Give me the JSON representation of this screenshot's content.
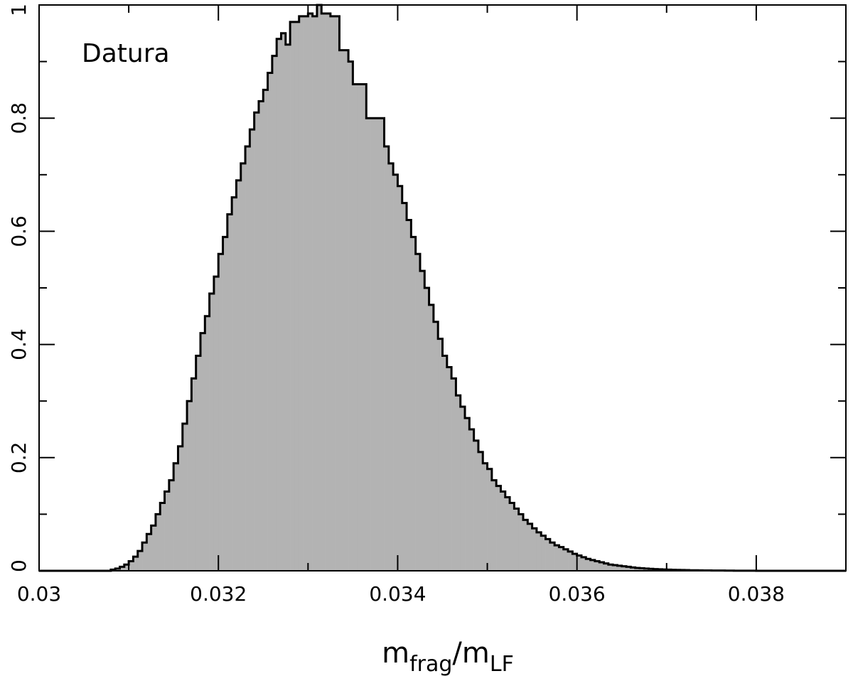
{
  "chart_data": {
    "type": "histogram",
    "annotation": "Datura",
    "xlabel": [
      {
        "text": "m"
      },
      {
        "text": "frag",
        "sub": true
      },
      {
        "text": "/"
      },
      {
        "text": "m"
      },
      {
        "text": "LF",
        "sub": true
      }
    ],
    "color": "#b3b3b3",
    "edge_color": "#000000",
    "xlim": [
      0.03,
      0.039
    ],
    "ylim": [
      0,
      1
    ],
    "xticks": [
      0.03,
      0.032,
      0.034,
      0.036,
      0.038
    ],
    "yticks": [
      0,
      0.2,
      0.4,
      0.6,
      0.8,
      1
    ],
    "xminorticks": [
      0.031,
      0.033,
      0.035,
      0.037,
      0.039
    ],
    "yminorticks": [
      0.1,
      0.3,
      0.5,
      0.7,
      0.9
    ],
    "bins": [
      0.0308,
      0.03085,
      0.0309,
      0.03095,
      0.031,
      0.03105,
      0.0311,
      0.03115,
      0.0312,
      0.03125,
      0.0313,
      0.03135,
      0.0314,
      0.03145,
      0.0315,
      0.03155,
      0.0316,
      0.03165,
      0.0317,
      0.03175,
      0.0318,
      0.03185,
      0.0319,
      0.03195,
      0.032,
      0.03205,
      0.0321,
      0.03215,
      0.0322,
      0.03225,
      0.0323,
      0.03235,
      0.0324,
      0.03245,
      0.0325,
      0.03255,
      0.0326,
      0.03265,
      0.0327,
      0.03275,
      0.0328,
      0.03285,
      0.0329,
      0.03295,
      0.033,
      0.03305,
      0.0331,
      0.03315,
      0.0332,
      0.03325,
      0.0333,
      0.03335,
      0.0334,
      0.03345,
      0.0335,
      0.03355,
      0.0336,
      0.03365,
      0.0337,
      0.03375,
      0.0338,
      0.03385,
      0.0339,
      0.03395,
      0.034,
      0.03405,
      0.0341,
      0.03415,
      0.0342,
      0.03425,
      0.0343,
      0.03435,
      0.0344,
      0.03445,
      0.0345,
      0.03455,
      0.0346,
      0.03465,
      0.0347,
      0.03475,
      0.0348,
      0.03485,
      0.0349,
      0.03495,
      0.035,
      0.03505,
      0.0351,
      0.03515,
      0.0352,
      0.03525,
      0.0353,
      0.03535,
      0.0354,
      0.03545,
      0.0355,
      0.03555,
      0.0356,
      0.03565,
      0.0357,
      0.03575,
      0.0358,
      0.03585,
      0.0359,
      0.03595,
      0.036,
      0.03605,
      0.0361,
      0.03615,
      0.0362,
      0.03625,
      0.0363,
      0.03635,
      0.0364,
      0.03645,
      0.0365,
      0.03655,
      0.0366,
      0.03665,
      0.0367,
      0.03675,
      0.0368,
      0.03685,
      0.0369,
      0.03695,
      0.037,
      0.03705,
      0.0371,
      0.03715,
      0.0372,
      0.03725,
      0.0373,
      0.03735,
      0.0374,
      0.03745,
      0.0375,
      0.03755,
      0.0376,
      0.03765,
      0.0377,
      0.03775,
      0.0378,
      0.03785,
      0.0379,
      0.03795,
      0.038
    ],
    "values": [
      0.002,
      0.004,
      0.007,
      0.011,
      0.017,
      0.025,
      0.035,
      0.05,
      0.065,
      0.08,
      0.1,
      0.12,
      0.14,
      0.16,
      0.19,
      0.22,
      0.26,
      0.3,
      0.34,
      0.38,
      0.42,
      0.45,
      0.49,
      0.52,
      0.56,
      0.59,
      0.63,
      0.66,
      0.69,
      0.72,
      0.75,
      0.78,
      0.81,
      0.83,
      0.85,
      0.88,
      0.91,
      0.94,
      0.95,
      0.93,
      0.97,
      0.97,
      0.98,
      0.98,
      0.985,
      0.98,
      1.0,
      0.985,
      0.985,
      0.98,
      0.98,
      0.92,
      0.92,
      0.9,
      0.86,
      0.86,
      0.86,
      0.8,
      0.8,
      0.8,
      0.8,
      0.75,
      0.72,
      0.7,
      0.68,
      0.65,
      0.62,
      0.59,
      0.56,
      0.53,
      0.5,
      0.47,
      0.44,
      0.41,
      0.38,
      0.36,
      0.34,
      0.31,
      0.29,
      0.27,
      0.25,
      0.23,
      0.21,
      0.19,
      0.18,
      0.16,
      0.15,
      0.14,
      0.13,
      0.12,
      0.11,
      0.1,
      0.09,
      0.083,
      0.075,
      0.068,
      0.062,
      0.056,
      0.05,
      0.045,
      0.042,
      0.038,
      0.034,
      0.03,
      0.027,
      0.024,
      0.021,
      0.019,
      0.017,
      0.015,
      0.013,
      0.011,
      0.01,
      0.009,
      0.008,
      0.007,
      0.006,
      0.005,
      0.0045,
      0.004,
      0.0035,
      0.003,
      0.0027,
      0.0024,
      0.002,
      0.0018,
      0.0016,
      0.0014,
      0.0012,
      0.001,
      0.0009,
      0.0008,
      0.0007,
      0.0006,
      0.0005,
      0.0004,
      0.0004,
      0.0003,
      0.0003,
      0.0002,
      0.0002,
      0.0001,
      0.0001,
      0.0001
    ]
  }
}
